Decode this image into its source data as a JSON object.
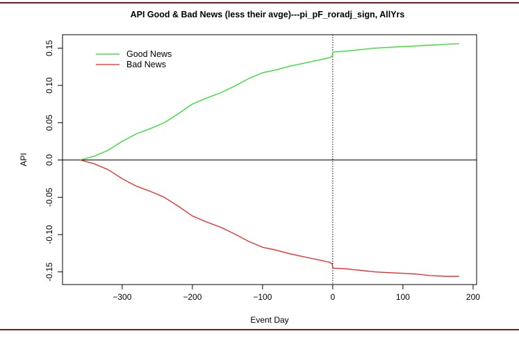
{
  "chart_data": {
    "type": "line",
    "title": "API Good & Bad News (less their avge)---pi_pF_roradj_sign, AllYrs",
    "xlabel": "Event Day",
    "ylabel": "API",
    "xlim": [
      -385,
      205
    ],
    "ylim": [
      -0.167,
      0.168
    ],
    "xticks": [
      -300,
      -200,
      -100,
      0,
      100,
      200
    ],
    "xtick_labels": [
      "−300",
      "−200",
      "−100",
      "0",
      "100",
      "200"
    ],
    "yticks": [
      0.15,
      0.1,
      0.05,
      0.0,
      -0.05,
      -0.1,
      -0.15
    ],
    "ytick_labels": [
      "0.15",
      "0.10",
      "0.05",
      "0.0",
      "-0.05",
      "-0.10",
      "-0.15"
    ],
    "reference_lines": {
      "horizontal_y": 0.0,
      "vertical_x": 0
    },
    "legend_position": "top-left",
    "grid": false,
    "series": [
      {
        "name": "Good News",
        "color": "#22e022",
        "x": [
          -360,
          -340,
          -320,
          -300,
          -280,
          -260,
          -240,
          -220,
          -200,
          -180,
          -160,
          -140,
          -120,
          -100,
          -80,
          -60,
          -40,
          -20,
          -5,
          -1,
          0,
          2,
          20,
          40,
          60,
          80,
          100,
          120,
          140,
          160,
          180
        ],
        "y": [
          0.0,
          0.005,
          0.013,
          0.025,
          0.035,
          0.042,
          0.05,
          0.062,
          0.075,
          0.083,
          0.09,
          0.099,
          0.109,
          0.117,
          0.121,
          0.126,
          0.13,
          0.134,
          0.137,
          0.139,
          0.144,
          0.145,
          0.146,
          0.148,
          0.15,
          0.151,
          0.152,
          0.153,
          0.154,
          0.155,
          0.156
        ]
      },
      {
        "name": "Bad News",
        "color": "#ee2222",
        "x": [
          -360,
          -340,
          -320,
          -300,
          -280,
          -260,
          -240,
          -220,
          -200,
          -180,
          -160,
          -140,
          -120,
          -100,
          -80,
          -60,
          -40,
          -20,
          -5,
          -1,
          0,
          2,
          20,
          40,
          60,
          80,
          100,
          120,
          140,
          160,
          180
        ],
        "y": [
          0.0,
          -0.005,
          -0.013,
          -0.025,
          -0.035,
          -0.042,
          -0.05,
          -0.062,
          -0.075,
          -0.083,
          -0.09,
          -0.099,
          -0.109,
          -0.117,
          -0.121,
          -0.126,
          -0.13,
          -0.134,
          -0.137,
          -0.139,
          -0.144,
          -0.145,
          -0.146,
          -0.148,
          -0.15,
          -0.151,
          -0.152,
          -0.153,
          -0.155,
          -0.156,
          -0.156
        ]
      }
    ]
  }
}
